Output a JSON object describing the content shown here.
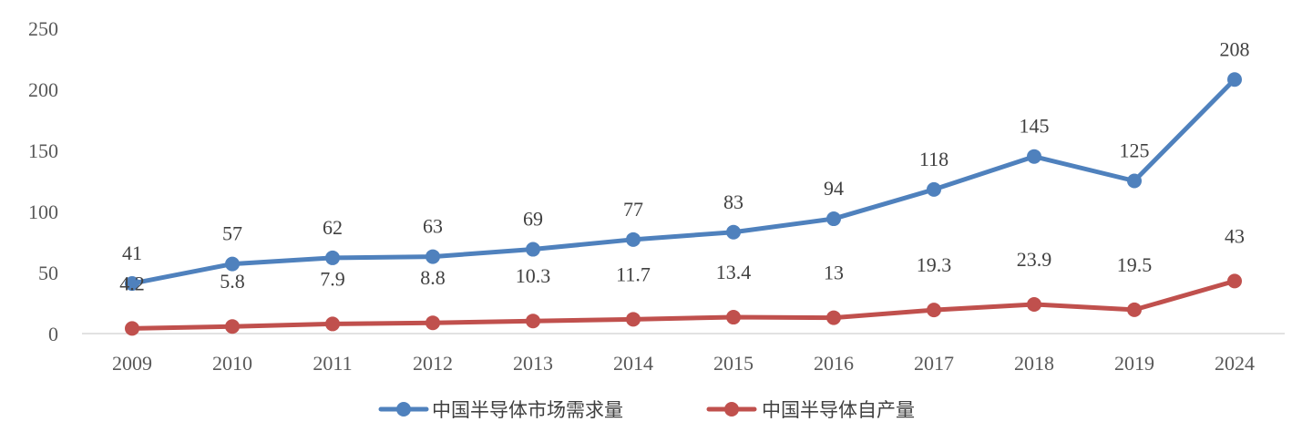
{
  "chart_data": {
    "type": "line",
    "categories": [
      "2009",
      "2010",
      "2011",
      "2012",
      "2013",
      "2014",
      "2015",
      "2016",
      "2017",
      "2018",
      "2019",
      "2024"
    ],
    "ylim": [
      0,
      250
    ],
    "yticks": [
      "0",
      "50",
      "100",
      "150",
      "200",
      "250"
    ],
    "grid": false,
    "legend_position": "bottom",
    "series": [
      {
        "name": "中国半导体市场需求量",
        "color": "#4F81BD",
        "values": [
          41,
          57,
          62,
          63,
          69,
          77,
          83,
          94,
          118,
          145,
          125,
          208
        ],
        "labels": [
          "41",
          "57",
          "62",
          "63",
          "69",
          "77",
          "83",
          "94",
          "118",
          "145",
          "125",
          "208"
        ]
      },
      {
        "name": "中国半导体自产量",
        "color": "#C0504D",
        "values": [
          4.2,
          5.8,
          7.9,
          8.8,
          10.3,
          11.7,
          13.4,
          13,
          19.3,
          23.9,
          19.5,
          43
        ],
        "labels": [
          "4.2",
          "5.8",
          "7.9",
          "8.8",
          "10.3",
          "11.7",
          "13.4",
          "13",
          "19.3",
          "23.9",
          "19.5",
          "43"
        ]
      }
    ]
  }
}
